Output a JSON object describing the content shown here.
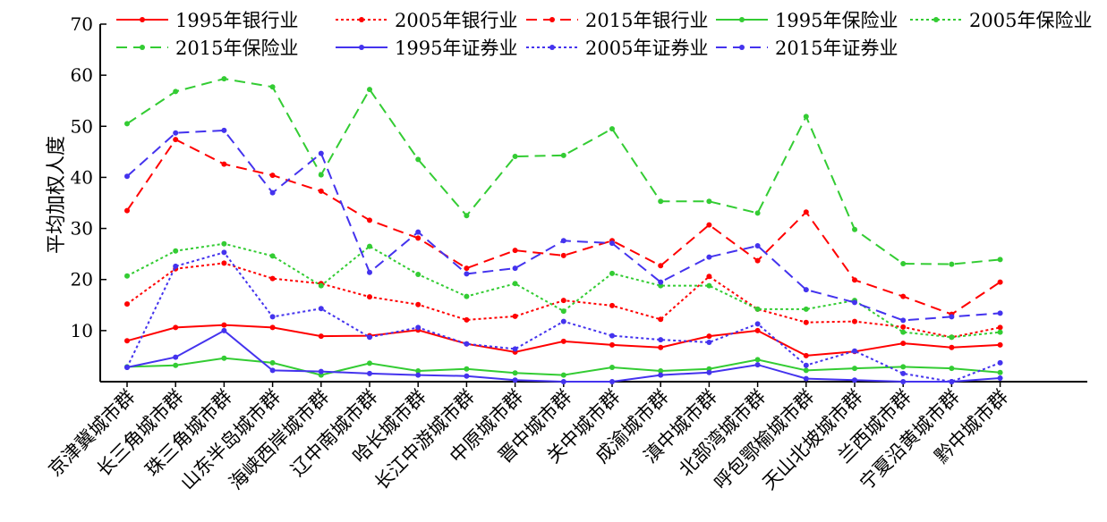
{
  "chart_data": {
    "type": "line",
    "ylabel": "平均加权人度",
    "ylim": [
      0,
      70
    ],
    "yticks": [
      10,
      20,
      30,
      40,
      50,
      60,
      70
    ],
    "grid": false,
    "legend_position": "top",
    "categories": [
      "京津冀城市群",
      "长三角城市群",
      "珠三角城市群",
      "山东半岛城市群",
      "海峡西岸城市群",
      "辽中南城市群",
      "哈长城市群",
      "长江中游城市群",
      "中原城市群",
      "晋中城市群",
      "关中城市群",
      "成渝城市群",
      "滇中城市群",
      "北部湾城市群",
      "呼包鄂榆城市群",
      "天山北坡城市群",
      "兰西城市群",
      "宁夏沿黄城市群",
      "黔中城市群"
    ],
    "series": [
      {
        "name": "1995年银行业",
        "color": "#ff0000",
        "dash": "solid",
        "values": [
          8.0,
          10.6,
          11.1,
          10.6,
          8.9,
          9.0,
          10.1,
          7.4,
          5.8,
          7.9,
          7.2,
          6.7,
          8.9,
          10.0,
          5.1,
          5.9,
          7.5,
          6.7,
          7.2
        ]
      },
      {
        "name": "2005年银行业",
        "color": "#ff0000",
        "dash": "dotted",
        "values": [
          15.2,
          22.1,
          23.2,
          20.2,
          19.2,
          16.6,
          15.1,
          12.1,
          12.8,
          15.9,
          14.9,
          12.2,
          20.6,
          14.2,
          11.6,
          11.8,
          10.7,
          8.7,
          10.6
        ]
      },
      {
        "name": "2015年银行业",
        "color": "#ff0000",
        "dash": "dashed",
        "values": [
          33.5,
          47.4,
          42.6,
          40.4,
          37.3,
          31.6,
          28.1,
          22.2,
          25.7,
          24.7,
          27.6,
          22.7,
          30.7,
          23.7,
          33.2,
          19.9,
          16.7,
          13.2,
          19.5
        ]
      },
      {
        "name": "1995年保险业",
        "color": "#33cc33",
        "dash": "solid",
        "values": [
          2.9,
          3.2,
          4.6,
          3.7,
          1.3,
          3.6,
          2.1,
          2.5,
          1.7,
          1.3,
          2.8,
          2.1,
          2.5,
          4.3,
          2.2,
          2.6,
          2.9,
          2.6,
          1.8
        ]
      },
      {
        "name": "2005年保险业",
        "color": "#33cc33",
        "dash": "dotted",
        "values": [
          20.7,
          25.6,
          27.0,
          24.6,
          18.8,
          26.5,
          21.0,
          16.7,
          19.2,
          13.8,
          21.2,
          18.8,
          18.8,
          14.2,
          14.2,
          15.9,
          9.7,
          8.7,
          9.7
        ]
      },
      {
        "name": "2015年保险业",
        "color": "#33cc33",
        "dash": "dashed",
        "values": [
          50.5,
          56.8,
          59.3,
          57.7,
          40.5,
          57.2,
          43.5,
          32.5,
          44.1,
          44.3,
          49.5,
          35.3,
          35.3,
          33.0,
          51.9,
          29.8,
          23.1,
          23.0,
          23.9
        ]
      },
      {
        "name": "1995年证券业",
        "color": "#4433ee",
        "dash": "solid",
        "values": [
          2.8,
          4.8,
          10.0,
          2.2,
          2.0,
          1.6,
          1.3,
          1.1,
          0.3,
          0.0,
          0.0,
          1.3,
          1.8,
          3.3,
          0.6,
          0.3,
          0.0,
          0.0,
          0.7
        ]
      },
      {
        "name": "2005年证券业",
        "color": "#4433ee",
        "dash": "dotted",
        "values": [
          2.8,
          22.6,
          25.3,
          12.7,
          14.3,
          8.7,
          10.6,
          7.4,
          6.4,
          11.8,
          9.0,
          8.2,
          7.7,
          11.3,
          3.2,
          6.0,
          1.6,
          0.0,
          3.7
        ]
      },
      {
        "name": "2015年证券业",
        "color": "#4433ee",
        "dash": "dashed",
        "values": [
          40.2,
          48.7,
          49.2,
          37.0,
          44.7,
          21.4,
          29.3,
          21.1,
          22.2,
          27.6,
          27.1,
          19.5,
          24.4,
          26.6,
          18.0,
          15.5,
          12.0,
          12.7,
          13.4
        ]
      }
    ]
  }
}
